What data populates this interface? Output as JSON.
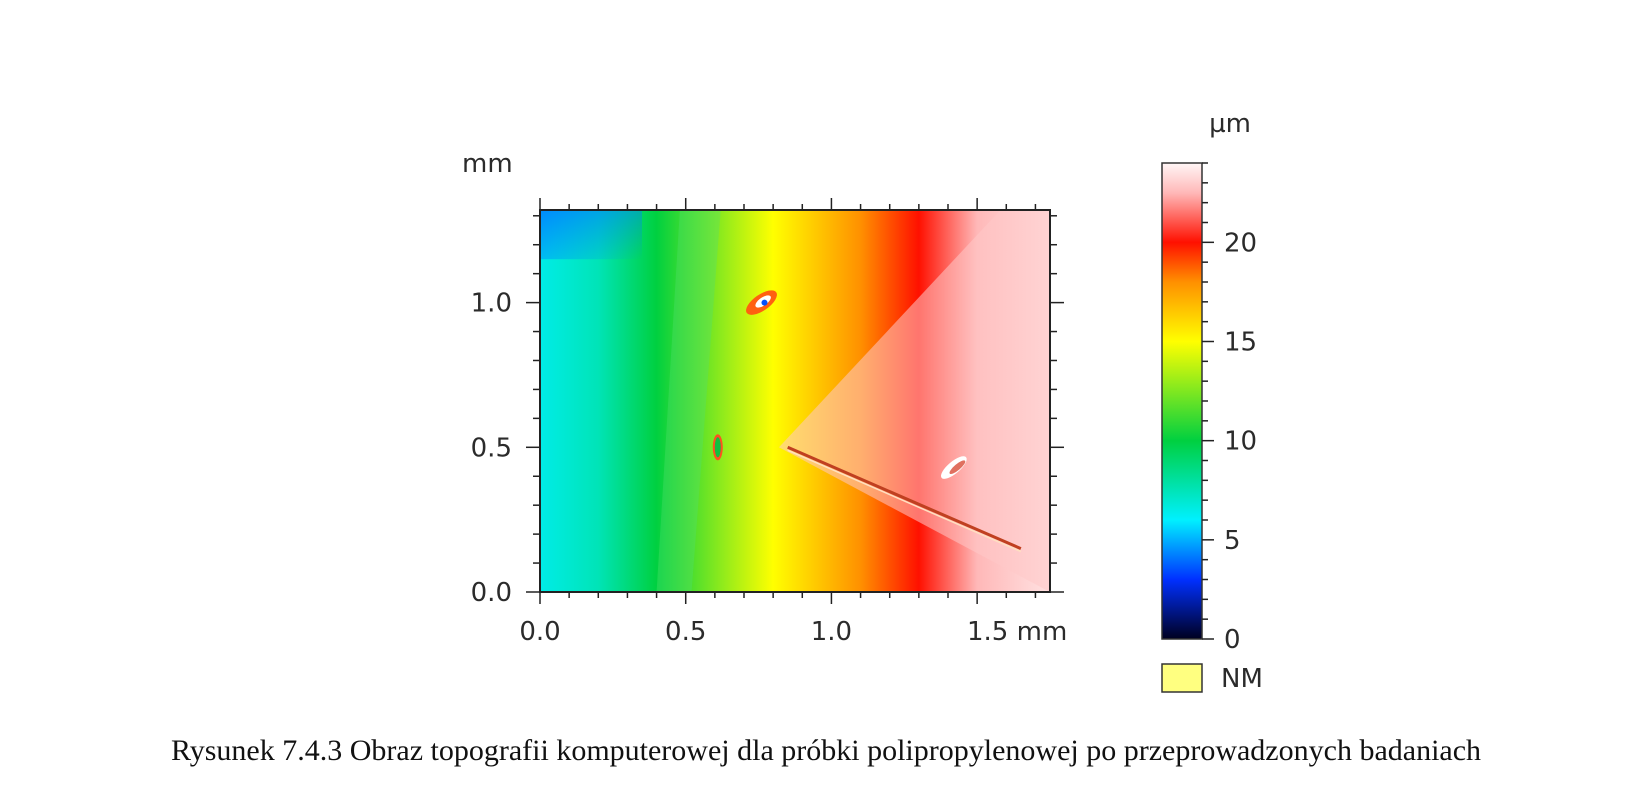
{
  "caption": "Rysunek 7.4.3 Obraz topografii komputerowej dla próbki polipropylenowej po przeprowadzonych badaniach",
  "chart_data": {
    "type": "heatmap",
    "x_unit_label": "mm",
    "y_unit_label": "mm",
    "xlim": [
      0,
      1.75
    ],
    "ylim": [
      0,
      1.32
    ],
    "x_ticks": [
      {
        "value": 0.0,
        "label": "0.0"
      },
      {
        "value": 0.5,
        "label": "0.5"
      },
      {
        "value": 1.0,
        "label": "1.0"
      },
      {
        "value": 1.5,
        "label": "1.5 mm"
      }
    ],
    "y_ticks": [
      {
        "value": 0.0,
        "label": "0.0"
      },
      {
        "value": 0.5,
        "label": "0.5"
      },
      {
        "value": 1.0,
        "label": "1.0"
      }
    ],
    "colorbar": {
      "unit_label": "µm",
      "range": [
        0,
        24
      ],
      "ticks": [
        {
          "value": 0,
          "label": "0"
        },
        {
          "value": 5,
          "label": "5"
        },
        {
          "value": 10,
          "label": "10"
        },
        {
          "value": 15,
          "label": "15"
        },
        {
          "value": 20,
          "label": "20"
        }
      ],
      "stops": [
        {
          "value": 0,
          "color": "#000020"
        },
        {
          "value": 3,
          "color": "#0030ff"
        },
        {
          "value": 6,
          "color": "#00f0ff"
        },
        {
          "value": 10,
          "color": "#00d040"
        },
        {
          "value": 15,
          "color": "#ffff00"
        },
        {
          "value": 18,
          "color": "#ff9000"
        },
        {
          "value": 20,
          "color": "#ff1000"
        },
        {
          "value": 22.5,
          "color": "#ffb8b8"
        },
        {
          "value": 24,
          "color": "#fff6f6"
        }
      ]
    },
    "legend_extra": {
      "label": "NM",
      "color": "#ffff80"
    },
    "height_profile_along_x": [
      {
        "x": 0.0,
        "z": 6.5
      },
      {
        "x": 0.2,
        "z": 7.5
      },
      {
        "x": 0.4,
        "z": 10.0
      },
      {
        "x": 0.8,
        "z": 15.0
      },
      {
        "x": 1.1,
        "z": 18.0
      },
      {
        "x": 1.3,
        "z": 20.0
      },
      {
        "x": 1.5,
        "z": 22.5
      },
      {
        "x": 1.75,
        "z": 23.5
      }
    ],
    "features": [
      {
        "name": "defect-1",
        "x": 0.76,
        "y": 1.0
      },
      {
        "name": "defect-2",
        "x": 0.61,
        "y": 0.5
      },
      {
        "name": "defect-3",
        "x": 1.42,
        "y": 0.43
      },
      {
        "name": "scratch",
        "x_start": 0.85,
        "y_start": 0.5,
        "x_end": 1.65,
        "y_end": 0.15
      }
    ]
  }
}
